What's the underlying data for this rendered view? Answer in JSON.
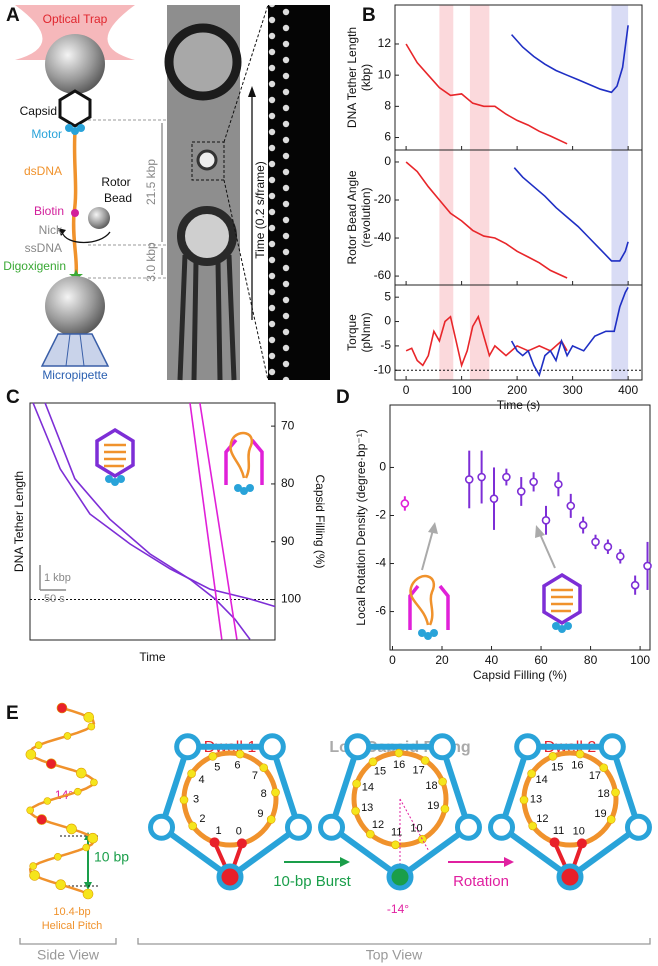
{
  "panel_labels": [
    "A",
    "B",
    "C",
    "D",
    "E"
  ],
  "panel_a": {
    "optical_trap": "Optical Trap",
    "capsid": "Capsid",
    "motor": "Motor",
    "dsdna": "dsDNA",
    "rotor_bead": [
      "Rotor",
      "Bead"
    ],
    "biotin": "Biotin",
    "nick": "Nick",
    "ssdna": "ssDNA",
    "digoxigenin": "Digoxigenin",
    "micropipette": "Micropipette",
    "length_1": "21.5 kbp",
    "length_2": "3.0 kbp",
    "time_axis": "Time (0.2 s/frame)"
  },
  "chart_data": [
    {
      "type": "line",
      "ylabel": [
        "DNA Tether Length",
        "(kbp)"
      ],
      "xlim": [
        -20,
        425
      ],
      "ylim": [
        5.2,
        14.5
      ],
      "xticks": [
        0,
        100,
        200,
        300,
        400
      ],
      "yticks": [
        6,
        8,
        10,
        12
      ],
      "show_xtick_labels": false,
      "shaded_regions": [
        {
          "x": [
            60,
            85
          ],
          "color": "#fbd9dc"
        },
        {
          "x": [
            115,
            150
          ],
          "color": "#fbd9dc"
        },
        {
          "x": [
            370,
            400
          ],
          "color": "#d9dcf5"
        }
      ],
      "series": [
        {
          "color": "#e8262a",
          "x": [
            0,
            20,
            40,
            60,
            80,
            100,
            120,
            140,
            160,
            180,
            200,
            220,
            240,
            260,
            290
          ],
          "values": [
            12.0,
            10.8,
            10.0,
            9.2,
            8.7,
            8.8,
            8.2,
            8.0,
            8.0,
            7.5,
            7.1,
            6.8,
            6.4,
            6.1,
            5.6
          ]
        },
        {
          "color": "#1f2fc4",
          "x": [
            190,
            210,
            230,
            250,
            270,
            290,
            310,
            330,
            350,
            370,
            380,
            390,
            400
          ],
          "values": [
            12.6,
            11.8,
            11.2,
            10.7,
            10.3,
            10.0,
            9.7,
            9.4,
            9.1,
            8.9,
            9.3,
            10.5,
            13.2
          ]
        }
      ]
    },
    {
      "type": "line",
      "ylabel": [
        "Rotor Bead Angle",
        "(revolution)"
      ],
      "xlim": [
        -20,
        425
      ],
      "ylim": [
        -64.7,
        6.3
      ],
      "xticks": [
        0,
        100,
        200,
        300,
        400
      ],
      "yticks": [
        -60,
        -40,
        -20,
        0
      ],
      "show_xtick_labels": false,
      "shaded_regions": [
        {
          "x": [
            60,
            85
          ],
          "color": "#fbd9dc"
        },
        {
          "x": [
            115,
            150
          ],
          "color": "#fbd9dc"
        },
        {
          "x": [
            370,
            400
          ],
          "color": "#d9dcf5"
        }
      ],
      "series": [
        {
          "color": "#e8262a",
          "x": [
            0,
            20,
            40,
            60,
            80,
            100,
            120,
            140,
            160,
            180,
            200,
            220,
            240,
            260,
            290
          ],
          "values": [
            0,
            -5,
            -13,
            -20,
            -27,
            -31,
            -36,
            -39,
            -40,
            -43,
            -47,
            -50,
            -53,
            -57,
            -61
          ]
        },
        {
          "color": "#1f2fc4",
          "x": [
            195,
            210,
            230,
            250,
            270,
            290,
            310,
            330,
            350,
            370,
            385,
            395,
            400
          ],
          "values": [
            -3,
            -8,
            -13,
            -18,
            -24,
            -29,
            -34,
            -40,
            -46,
            -52,
            -52,
            -47,
            -42
          ]
        }
      ]
    },
    {
      "type": "line",
      "ylabel": [
        "Torque",
        "(pNnm)"
      ],
      "xlabel": "Time (s)",
      "xlim": [
        -20,
        425
      ],
      "ylim": [
        -12,
        7.5
      ],
      "xticks": [
        0,
        100,
        200,
        300,
        400
      ],
      "yticks": [
        -10,
        -5,
        0,
        5
      ],
      "hline": {
        "value": -10
      },
      "shaded_regions": [
        {
          "x": [
            60,
            85
          ],
          "color": "#fbd9dc"
        },
        {
          "x": [
            115,
            150
          ],
          "color": "#fbd9dc"
        },
        {
          "x": [
            370,
            400
          ],
          "color": "#d9dcf5"
        }
      ],
      "series": [
        {
          "color": "#e8262a",
          "x": [
            0,
            10,
            20,
            30,
            40,
            50,
            60,
            70,
            80,
            90,
            100,
            110,
            120,
            130,
            140,
            150,
            160,
            180,
            200,
            220,
            240,
            260,
            280,
            290
          ],
          "values": [
            -6,
            -5.5,
            -8,
            -9,
            -7,
            -2,
            -4,
            0,
            1,
            -4,
            -9,
            -6,
            -1,
            1,
            -3,
            -7,
            -5,
            -7,
            -5,
            -6,
            -5,
            -6,
            -4,
            -6
          ]
        },
        {
          "color": "#1f2fc4",
          "x": [
            190,
            200,
            210,
            220,
            230,
            240,
            250,
            260,
            270,
            280,
            290,
            300,
            320,
            340,
            360,
            375,
            385,
            395,
            400
          ],
          "values": [
            -4,
            -6,
            -7,
            -6,
            -9,
            -11,
            -7,
            -6,
            -8,
            -4,
            -7,
            -5,
            -6,
            -3,
            -2,
            -2,
            3,
            6,
            7
          ]
        }
      ]
    },
    {
      "type": "line",
      "xlabel": "Time",
      "ylabel": "DNA Tether Length",
      "y2label": "Capsid Filling (%)",
      "xlim": [
        0,
        470
      ],
      "y2lim": [
        107,
        66
      ],
      "y2ticks": [
        70,
        80,
        90,
        100
      ],
      "hline": {
        "value": 100,
        "axis": "y2"
      },
      "scale_bar": {
        "x_value": 50,
        "x_label": "50 s",
        "y_label": "1 kbp"
      },
      "series": [
        {
          "color": "#7d2ed6",
          "axis": "y2",
          "x": [
            6,
            58,
            115,
            192,
            269,
            345,
            422,
            470
          ],
          "values": [
            66,
            77.4,
            85.2,
            90.4,
            94.7,
            98.2,
            99.9,
            101.2
          ]
        },
        {
          "color": "#7d2ed6",
          "axis": "y2",
          "x": [
            29,
            86,
            153,
            230,
            307,
            355,
            393,
            422
          ],
          "values": [
            66,
            79.1,
            86.1,
            92.1,
            96.5,
            99.9,
            103.4,
            106.9
          ]
        },
        {
          "color": "#e020d8",
          "axis": "y2",
          "x": [
            307,
            368
          ],
          "values": [
            66,
            106.9
          ]
        },
        {
          "color": "#e020d8",
          "axis": "y2",
          "x": [
            326,
            397
          ],
          "values": [
            66,
            106.9
          ]
        }
      ]
    },
    {
      "type": "scatter",
      "xlabel": "Capsid Filling (%)",
      "ylabel": "Local Rotation Density (degree·bp⁻¹)",
      "xlim": [
        -1,
        104
      ],
      "ylim": [
        -7.6,
        2.6
      ],
      "xticks": [
        0,
        20,
        40,
        60,
        80,
        100
      ],
      "yticks": [
        -6,
        -4,
        -2,
        0
      ],
      "series": [
        {
          "color": "#e020d8",
          "x": [
            5
          ],
          "values": [
            -1.5
          ],
          "errors": [
            0.3
          ]
        },
        {
          "color": "#7d2ed6",
          "x": [
            31,
            36,
            41,
            46,
            52,
            57,
            62,
            67,
            72,
            77,
            82,
            87,
            92,
            98,
            103
          ],
          "values": [
            -0.5,
            -0.4,
            -1.3,
            -0.4,
            -1.0,
            -0.6,
            -2.2,
            -0.7,
            -1.6,
            -2.4,
            -3.1,
            -3.3,
            -3.7,
            -4.9,
            -4.1
          ],
          "errors": [
            1.2,
            1.1,
            1.3,
            0.35,
            0.6,
            0.4,
            0.6,
            0.5,
            0.5,
            0.35,
            0.3,
            0.3,
            0.3,
            0.4,
            1.0
          ]
        }
      ]
    }
  ],
  "panel_e": {
    "angle": "14°",
    "step": "10 bp",
    "pitch": [
      "10.4-bp",
      "Helical Pitch"
    ],
    "burst": "10-bp Burst",
    "rotation": "Rotation",
    "offset": "-14°",
    "side_view": "Side View",
    "top_view": "Top View",
    "diagrams": [
      {
        "title": "Dwell 1",
        "numbers": [
          0,
          1,
          2,
          3,
          4,
          5,
          6,
          7,
          8,
          9
        ]
      },
      {
        "title": "Low Capsid Filling",
        "numbers": [
          10,
          11,
          12,
          13,
          14,
          15,
          16,
          17,
          18,
          19
        ]
      },
      {
        "title": "Dwell 2",
        "numbers": [
          10,
          11,
          12,
          13,
          14,
          15,
          16,
          17,
          18,
          19
        ]
      }
    ]
  }
}
